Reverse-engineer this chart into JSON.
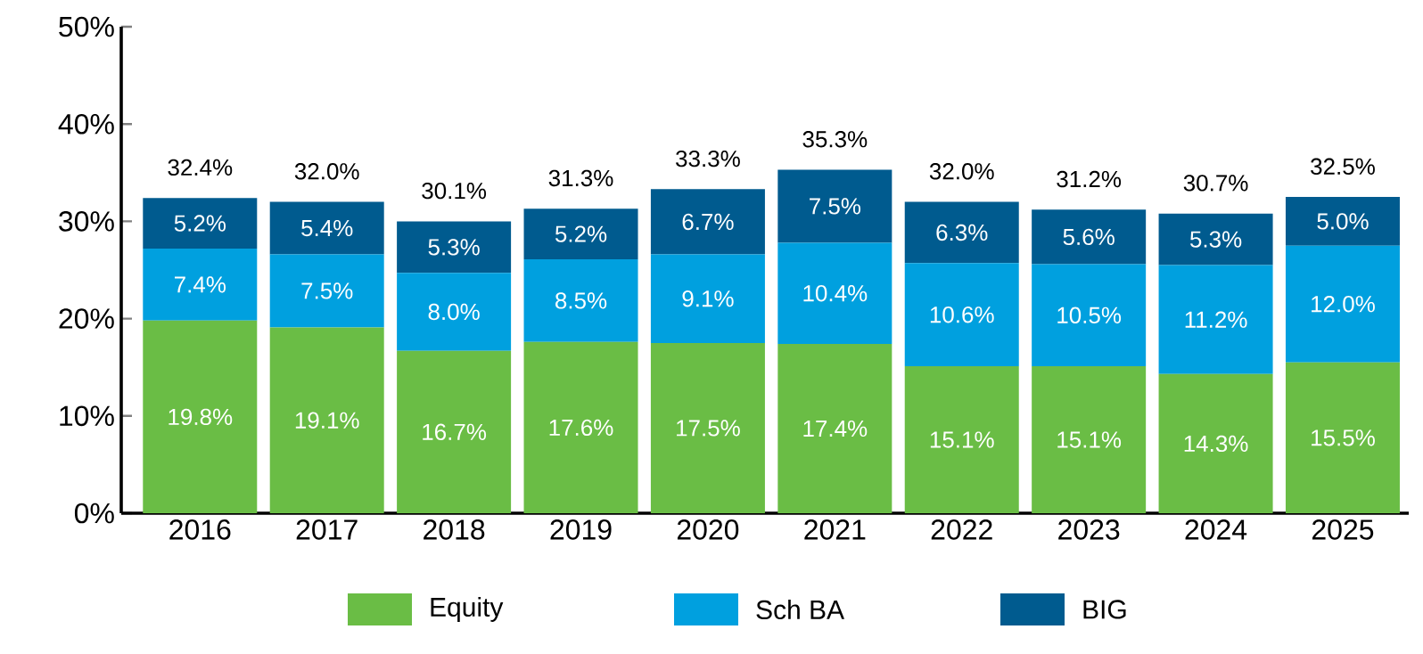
{
  "chart_data": {
    "type": "bar",
    "stacked": true,
    "categories": [
      "2016",
      "2017",
      "2018",
      "2019",
      "2020",
      "2021",
      "2022",
      "2023",
      "2024",
      "2025"
    ],
    "series": [
      {
        "name": "Equity",
        "color": "#6abd45",
        "values": [
          19.8,
          19.1,
          16.7,
          17.6,
          17.5,
          17.4,
          15.1,
          15.1,
          14.3,
          15.5
        ],
        "value_labels": [
          "19.8%",
          "19.1%",
          "16.7%",
          "17.6%",
          "17.5%",
          "17.4%",
          "15.1%",
          "15.1%",
          "14.3%",
          "15.5%"
        ]
      },
      {
        "name": "Sch BA",
        "color": "#00a0df",
        "values": [
          7.4,
          7.5,
          8.0,
          8.5,
          9.1,
          10.4,
          10.6,
          10.5,
          11.2,
          12.0
        ],
        "value_labels": [
          "7.4%",
          "7.5%",
          "8.0%",
          "8.5%",
          "9.1%",
          "10.4%",
          "10.6%",
          "10.5%",
          "11.2%",
          "12.0%"
        ]
      },
      {
        "name": "BIG",
        "color": "#005b8f",
        "values": [
          5.2,
          5.4,
          5.3,
          5.2,
          6.7,
          7.5,
          6.3,
          5.6,
          5.3,
          5.0
        ],
        "value_labels": [
          "5.2%",
          "5.4%",
          "5.3%",
          "5.2%",
          "6.7%",
          "7.5%",
          "6.3%",
          "5.6%",
          "5.3%",
          "5.0%"
        ]
      }
    ],
    "totals": [
      "32.4%",
      "32.0%",
      "30.1%",
      "31.3%",
      "33.3%",
      "35.3%",
      "32.0%",
      "31.2%",
      "30.7%",
      "32.5%"
    ],
    "ylim": [
      0,
      50
    ],
    "yticks": [
      {
        "value": 0,
        "label": "0%"
      },
      {
        "value": 10,
        "label": "10%"
      },
      {
        "value": 20,
        "label": "20%"
      },
      {
        "value": 30,
        "label": "30%"
      },
      {
        "value": 40,
        "label": "40%"
      },
      {
        "value": 50,
        "label": "50%"
      }
    ],
    "grid": false,
    "legend": "bottom"
  }
}
